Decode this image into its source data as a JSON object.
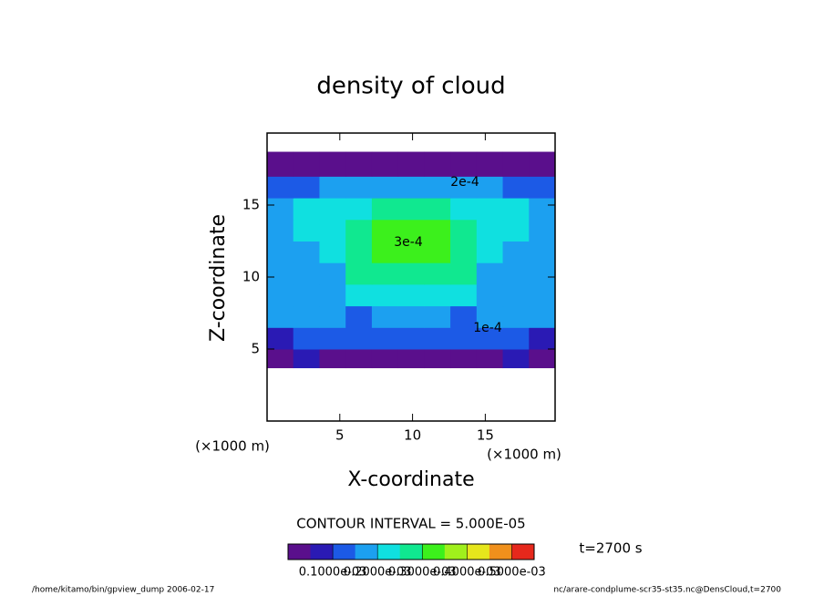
{
  "chart_data": {
    "type": "contour",
    "title": "density of cloud",
    "x_label": "X-coordinate",
    "y_label": "Z-coordinate",
    "x_unit": "(×1000 m)",
    "y_unit": "(×1000 m)",
    "xlim": [
      0,
      19.8
    ],
    "ylim": [
      0,
      20
    ],
    "xticks": [
      5,
      10,
      15
    ],
    "yticks": [
      5,
      10,
      15
    ],
    "x_edges": [
      0,
      1.8,
      3.6,
      5.4,
      7.2,
      9,
      10.8,
      12.6,
      14.4,
      16.2,
      18,
      19.8
    ],
    "y_edges": [
      3.7,
      5,
      6.5,
      8,
      9.5,
      11,
      12.5,
      14,
      15.5,
      17,
      18.7
    ],
    "values": [
      [
        3e-05,
        5e-05,
        4e-05,
        3e-05,
        3e-05,
        3e-05,
        3e-05,
        3e-05,
        4e-05,
        5e-05,
        3e-05
      ],
      [
        9e-05,
        0.00013,
        0.0001,
        0.0001,
        0.0001,
        0.0001,
        0.0001,
        0.0001,
        0.0001,
        0.00013,
        9e-05
      ],
      [
        0.00015,
        0.00018,
        0.00016,
        0.00014,
        0.00015,
        0.00015,
        0.00015,
        0.00014,
        0.00016,
        0.00018,
        0.00015
      ],
      [
        0.00017,
        0.00019,
        0.00019,
        0.00021,
        0.00023,
        0.00023,
        0.00023,
        0.00021,
        0.00019,
        0.00019,
        0.00017
      ],
      [
        0.00018,
        0.00018,
        0.00019,
        0.00025,
        0.00028,
        0.00029,
        0.00028,
        0.00025,
        0.00019,
        0.00018,
        0.00018
      ],
      [
        0.00019,
        0.00019,
        0.00022,
        0.00027,
        0.00032,
        0.00033,
        0.00032,
        0.00027,
        0.00022,
        0.00019,
        0.00019
      ],
      [
        0.00019,
        0.0002,
        0.00022,
        0.00027,
        0.00031,
        0.00032,
        0.00031,
        0.00027,
        0.00022,
        0.0002,
        0.00019
      ],
      [
        0.00018,
        0.0002,
        0.00021,
        0.00023,
        0.00025,
        0.00026,
        0.00025,
        0.00023,
        0.00021,
        0.0002,
        0.00018
      ],
      [
        0.00012,
        0.00014,
        0.00016,
        0.00018,
        0.00019,
        0.00019,
        0.00019,
        0.00018,
        0.00016,
        0.00014,
        0.00012
      ],
      [
        3e-05,
        3e-05,
        3e-05,
        3e-05,
        3e-05,
        3e-05,
        3e-05,
        3e-05,
        3e-05,
        3e-05,
        3e-05
      ]
    ],
    "clim": [
      0,
      0.00055
    ],
    "colors": [
      "#5a0f8c",
      "#2a1ab4",
      "#1c5ae6",
      "#1ca0f0",
      "#10e0e0",
      "#10e890",
      "#3cf01c",
      "#a0f01c",
      "#e6e61c",
      "#f0901c",
      "#e6281c"
    ],
    "colorbar_ticks": [
      {
        "value": 0.0001,
        "label": "0.1000e-03"
      },
      {
        "value": 0.0002,
        "label": "0.2000e-03"
      },
      {
        "value": 0.0003,
        "label": "0.3000e-03"
      },
      {
        "value": 0.0004,
        "label": "0.4000e-03"
      },
      {
        "value": 0.0005,
        "label": "0.5000e-03"
      }
    ],
    "contour_labels": [
      "2e-4",
      "3e-4",
      "1e-4"
    ],
    "contour_interval": "CONTOUR INTERVAL = 5.000E-05",
    "time_label": "t=2700 s",
    "footer_left": "/home/kitamo/bin/gpview_dump  2006-02-17",
    "footer_right": "nc/arare-condplume-scr35-st35.nc@DensCloud,t=2700"
  }
}
